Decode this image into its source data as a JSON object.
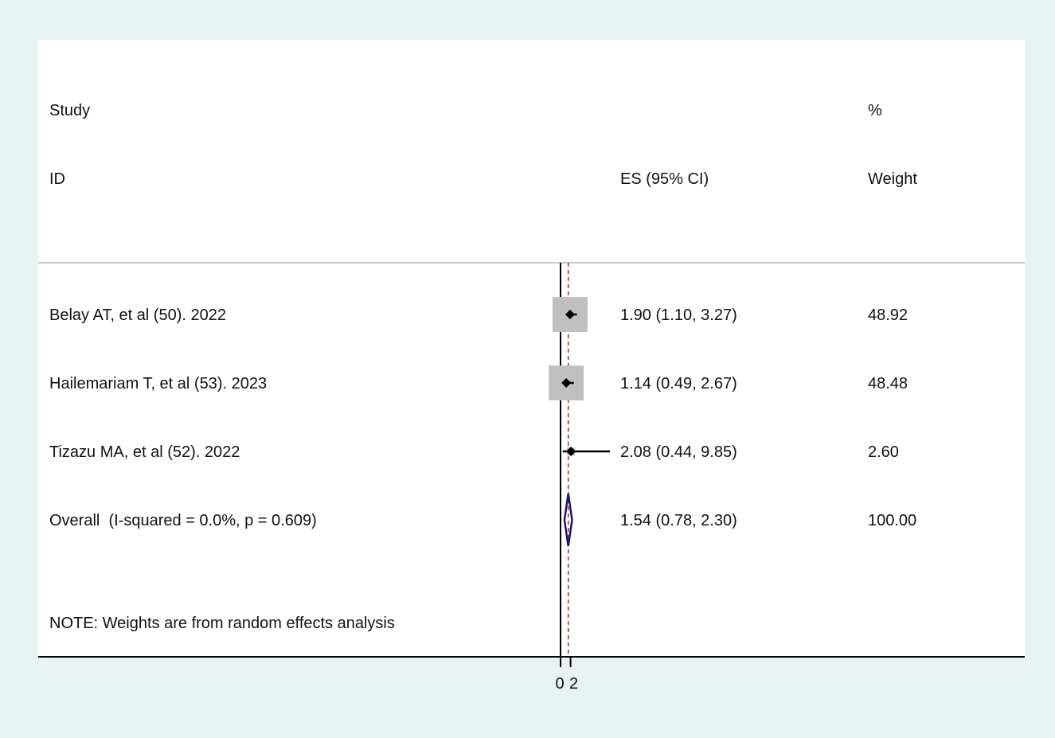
{
  "chart_data": {
    "type": "forest",
    "headers": {
      "study_line1": "Study",
      "study_line2": "ID",
      "es": "ES (95% CI)",
      "weight_line1": "%",
      "weight_line2": "Weight"
    },
    "studies": [
      {
        "label": "Belay AT, et al (50). 2022",
        "es": 1.9,
        "lower": 1.1,
        "upper": 3.27,
        "ci_text": "1.90 (1.10, 3.27)",
        "weight": 48.92,
        "weight_text": "48.92"
      },
      {
        "label": "Hailemariam T, et al (53). 2023",
        "es": 1.14,
        "lower": 0.49,
        "upper": 2.67,
        "ci_text": "1.14 (0.49, 2.67)",
        "weight": 48.48,
        "weight_text": "48.48"
      },
      {
        "label": "Tizazu MA, et al (52). 2022",
        "es": 2.08,
        "lower": 0.44,
        "upper": 9.85,
        "ci_text": "2.08 (0.44, 9.85)",
        "weight": 2.6,
        "weight_text": "2.60"
      }
    ],
    "overall": {
      "label": "Overall  (I-squared = 0.0%, p = 0.609)",
      "es": 1.54,
      "lower": 0.78,
      "upper": 2.3,
      "ci_text": "1.54 (0.78, 2.30)",
      "weight_text": "100.00"
    },
    "note": "NOTE: Weights are from random effects analysis",
    "x_ticks": [
      {
        "value": 0,
        "label": "0"
      },
      {
        "value": 2,
        "label": "2"
      }
    ],
    "null_line": 0,
    "colors": {
      "background": "#e9f2f2",
      "weight_box": "#c0c0c0",
      "diamond": "#1a1a6e",
      "overall_line": "#b22222",
      "axis": "#000000"
    }
  }
}
